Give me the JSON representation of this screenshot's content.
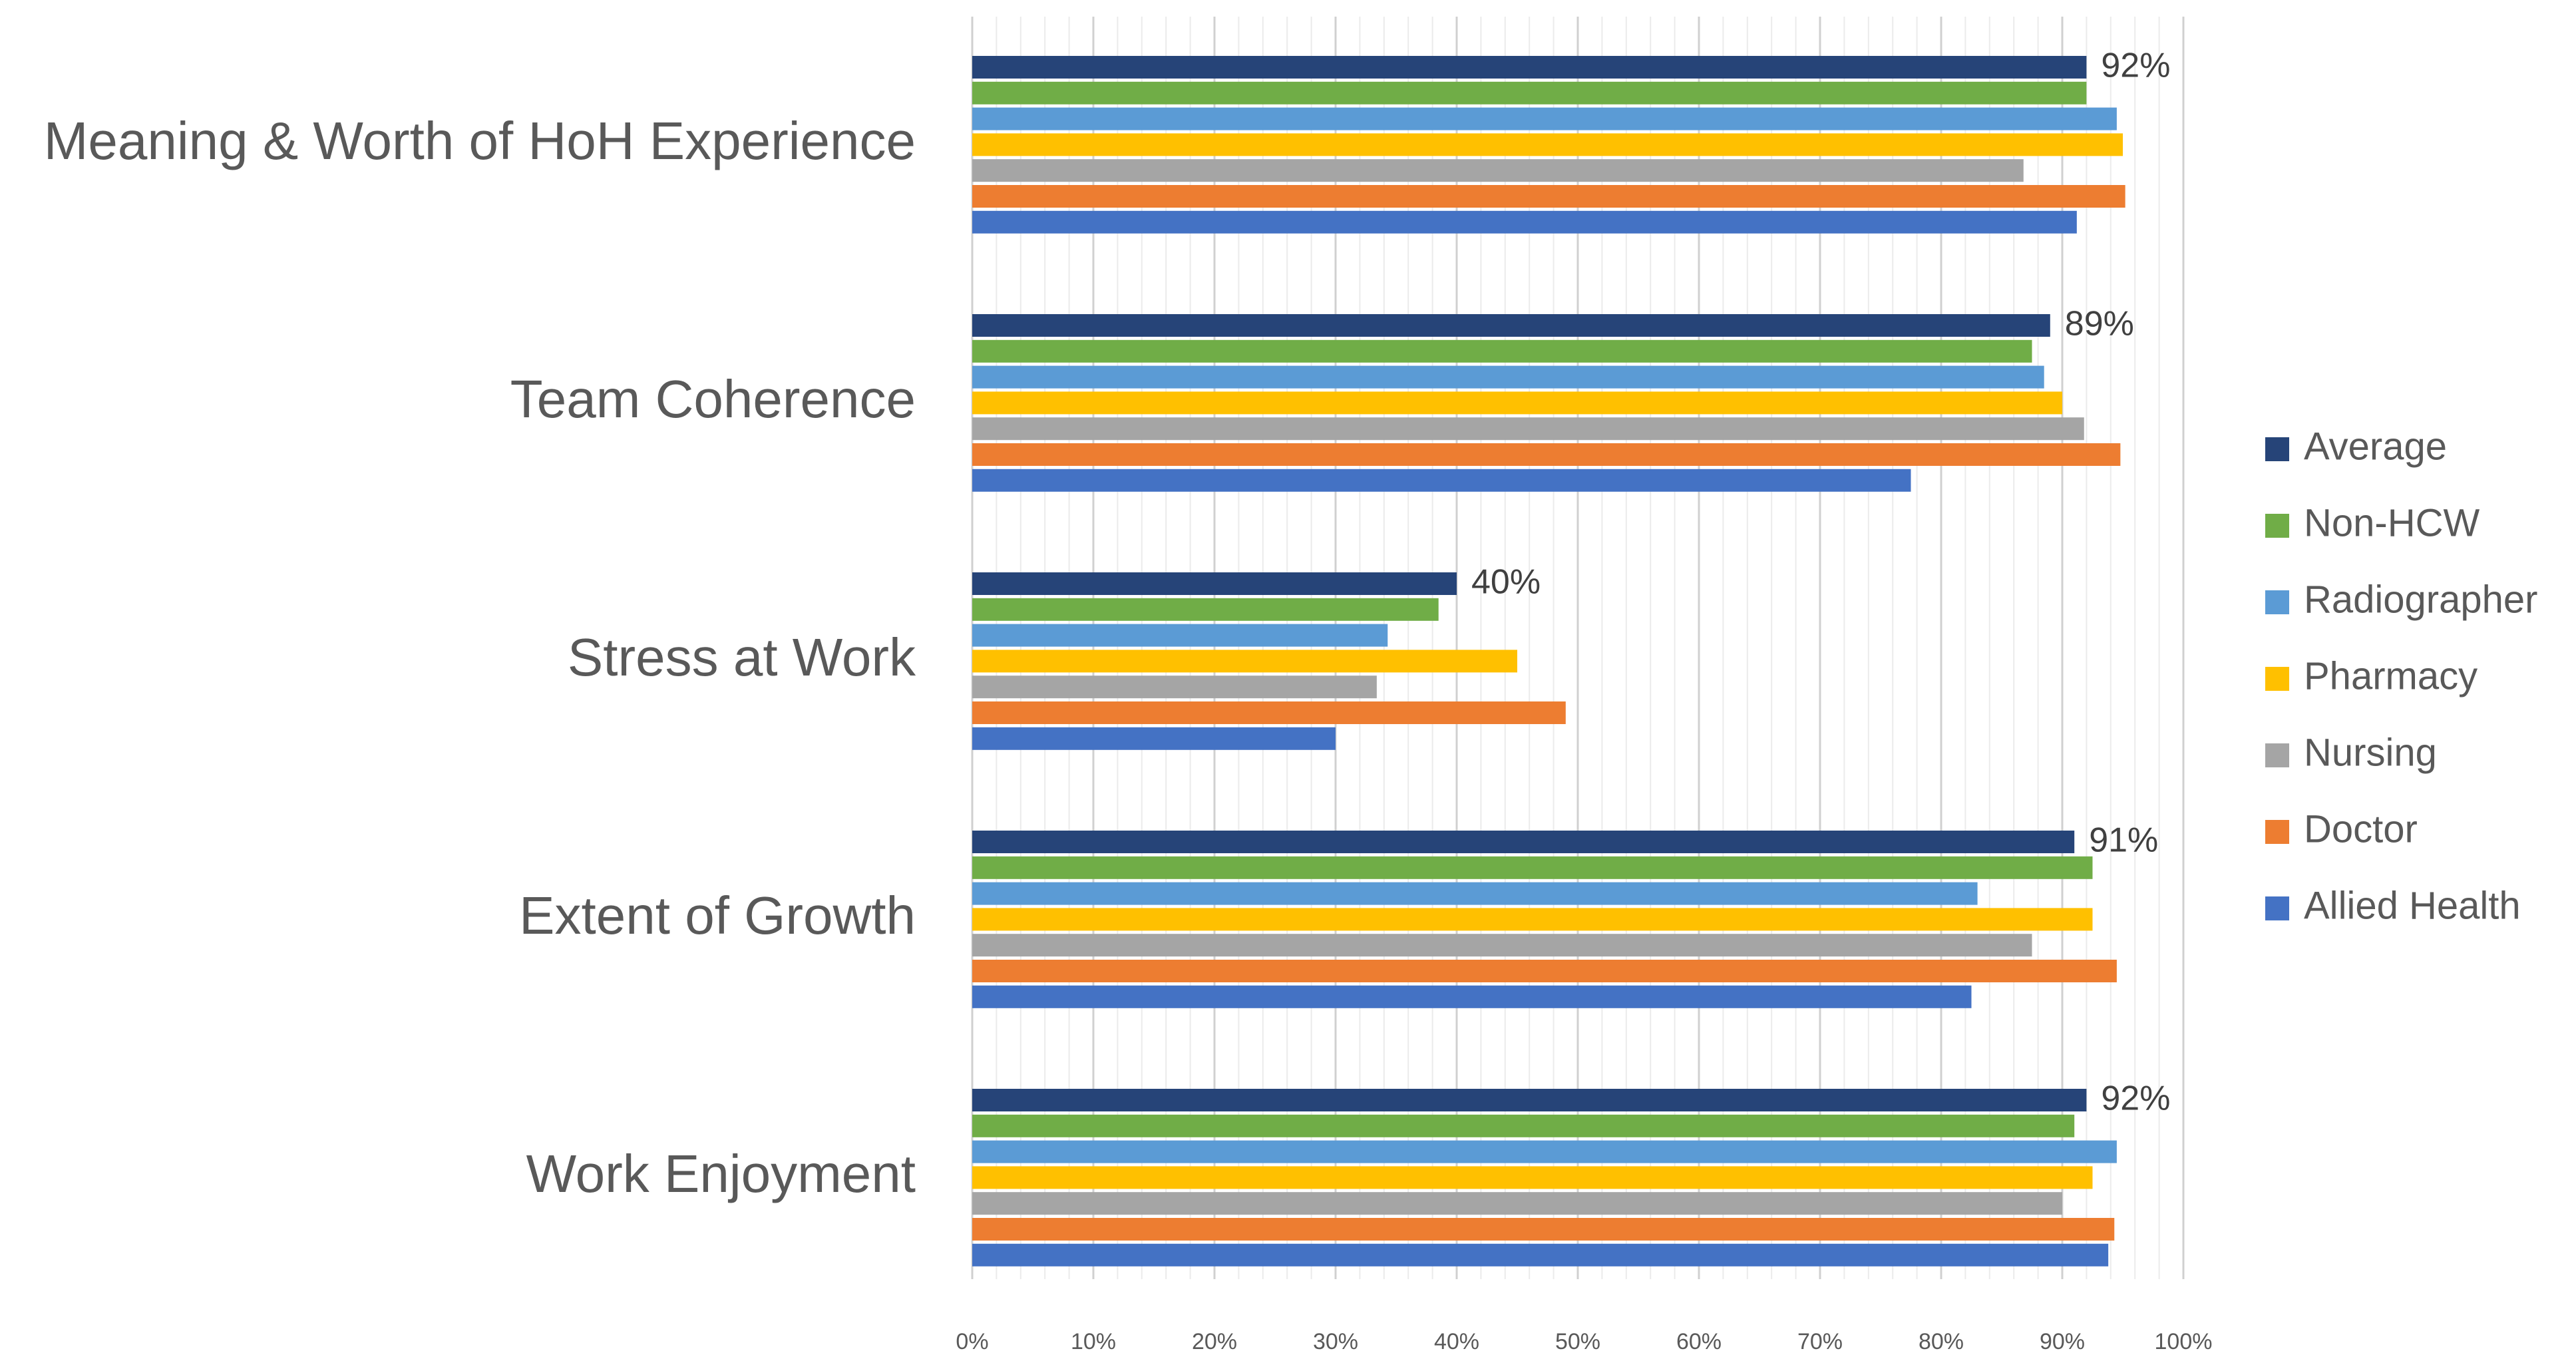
{
  "chart_data": {
    "type": "bar",
    "orientation": "horizontal",
    "title": "",
    "xlabel": "",
    "ylabel": "",
    "xlim": [
      0,
      100
    ],
    "x_ticks": [
      "0%",
      "10%",
      "20%",
      "30%",
      "40%",
      "50%",
      "60%",
      "70%",
      "80%",
      "90%",
      "100%"
    ],
    "grid": true,
    "legend_position": "right",
    "categories": [
      "Meaning & Worth of HoH Experience",
      "Team Coherence",
      "Stress at Work",
      "Extent of Growth",
      "Work Enjoyment"
    ],
    "series": [
      {
        "name": "Average",
        "color": "#264478",
        "values": [
          92,
          89,
          40,
          91,
          92
        ],
        "labels": [
          "92%",
          "89%",
          "40%",
          "91%",
          "92%"
        ]
      },
      {
        "name": "Non-HCW",
        "color": "#70AD47",
        "values": [
          92,
          87.5,
          38.5,
          92.5,
          91
        ]
      },
      {
        "name": "Radiographer",
        "color": "#5B9BD5",
        "values": [
          94.5,
          88.5,
          34.3,
          83,
          94.5
        ]
      },
      {
        "name": "Pharmacy",
        "color": "#FFC000",
        "values": [
          95,
          90,
          45,
          92.5,
          92.5
        ]
      },
      {
        "name": "Nursing",
        "color": "#A5A5A5",
        "values": [
          86.8,
          91.8,
          33.4,
          87.5,
          90
        ]
      },
      {
        "name": "Doctor",
        "color": "#ED7D31",
        "values": [
          95.2,
          94.8,
          49,
          94.5,
          94.3
        ]
      },
      {
        "name": "Allied Health",
        "color": "#4472C4",
        "values": [
          91.2,
          77.5,
          30,
          82.5,
          93.8
        ]
      }
    ]
  }
}
